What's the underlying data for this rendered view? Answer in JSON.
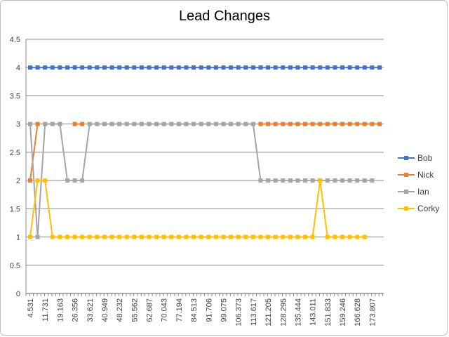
{
  "chart_data": {
    "type": "line",
    "title": "Lead Changes",
    "xlabel": "",
    "ylabel": "",
    "ylim": [
      0,
      4.5
    ],
    "y_ticks": [
      "0",
      "0.5",
      "1",
      "1.5",
      "2",
      "2.5",
      "3",
      "3.5",
      "4",
      "4.5"
    ],
    "grid": "horizontal",
    "legend_position": "right",
    "x_tick_labels": [
      "4.531",
      "11.731",
      "19.163",
      "26.356",
      "33.621",
      "40.949",
      "48.232",
      "55.562",
      "62.687",
      "70.043",
      "77.194",
      "84.513",
      "91.706",
      "99.075",
      "106.373",
      "113.617",
      "121.205",
      "128.295",
      "135.444",
      "143.011",
      "151.833",
      "159.246",
      "166.628",
      "173.807"
    ],
    "series": [
      {
        "name": "Bob",
        "color": "#4472C4",
        "values": [
          4,
          4,
          4,
          4,
          4,
          4,
          4,
          4,
          4,
          4,
          4,
          4,
          4,
          4,
          4,
          4,
          4,
          4,
          4,
          4,
          4,
          4,
          4,
          4,
          4,
          4,
          4,
          4,
          4,
          4,
          4,
          4,
          4,
          4,
          4,
          4,
          4,
          4,
          4,
          4,
          4,
          4,
          4,
          4,
          4,
          4,
          4,
          4
        ]
      },
      {
        "name": "Nick",
        "color": "#ED7D31",
        "values": [
          2,
          3,
          null,
          null,
          null,
          null,
          3,
          3,
          null,
          null,
          null,
          null,
          null,
          null,
          null,
          null,
          null,
          null,
          null,
          null,
          null,
          null,
          null,
          null,
          null,
          null,
          null,
          null,
          null,
          null,
          null,
          3,
          3,
          3,
          3,
          3,
          3,
          3,
          3,
          3,
          3,
          3,
          3,
          3,
          3,
          3,
          3,
          3
        ]
      },
      {
        "name": "Ian",
        "color": "#A5A5A5",
        "values": [
          3,
          1,
          3,
          3,
          3,
          2,
          2,
          2,
          3,
          3,
          3,
          3,
          3,
          3,
          3,
          3,
          3,
          3,
          3,
          3,
          3,
          3,
          3,
          3,
          3,
          3,
          3,
          3,
          3,
          3,
          3,
          2,
          2,
          2,
          2,
          2,
          2,
          2,
          2,
          2,
          2,
          2,
          2,
          2,
          2,
          2,
          2,
          null
        ]
      },
      {
        "name": "Corky",
        "color": "#FFC000",
        "values": [
          1,
          2,
          2,
          1,
          1,
          1,
          1,
          1,
          1,
          1,
          1,
          1,
          1,
          1,
          1,
          1,
          1,
          1,
          1,
          1,
          1,
          1,
          1,
          1,
          1,
          1,
          1,
          1,
          1,
          1,
          1,
          1,
          1,
          1,
          1,
          1,
          1,
          1,
          1,
          2,
          1,
          1,
          1,
          1,
          1,
          1,
          null,
          null
        ]
      }
    ]
  }
}
